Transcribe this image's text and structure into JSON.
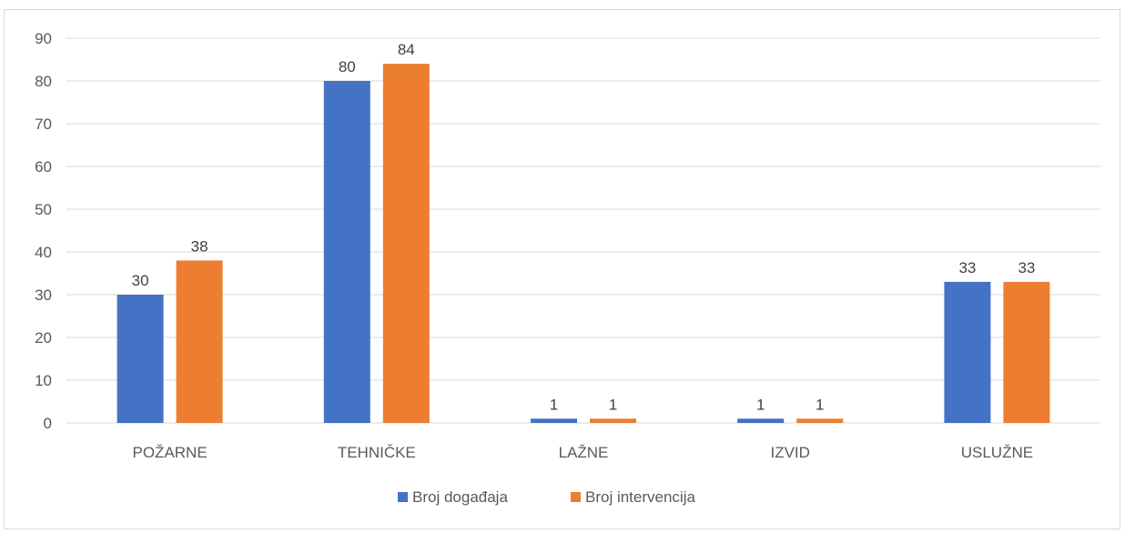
{
  "chart_data": {
    "type": "bar",
    "title": "",
    "xlabel": "",
    "ylabel": "",
    "categories": [
      "POŽARNE",
      "TEHNIČKE",
      "LAŽNE",
      "IZVID",
      "USLUŽNE"
    ],
    "series": [
      {
        "name": "Broj događaja",
        "color": "#4472c4",
        "values": [
          30,
          80,
          1,
          1,
          33
        ]
      },
      {
        "name": "Broj intervencija",
        "color": "#ed7d31",
        "values": [
          38,
          84,
          1,
          1,
          33
        ]
      }
    ],
    "ylim": [
      0,
      90
    ],
    "yticks": [
      0,
      10,
      20,
      30,
      40,
      50,
      60,
      70,
      80,
      90
    ],
    "grid": true,
    "legend": "bottom",
    "data_labels": true
  }
}
